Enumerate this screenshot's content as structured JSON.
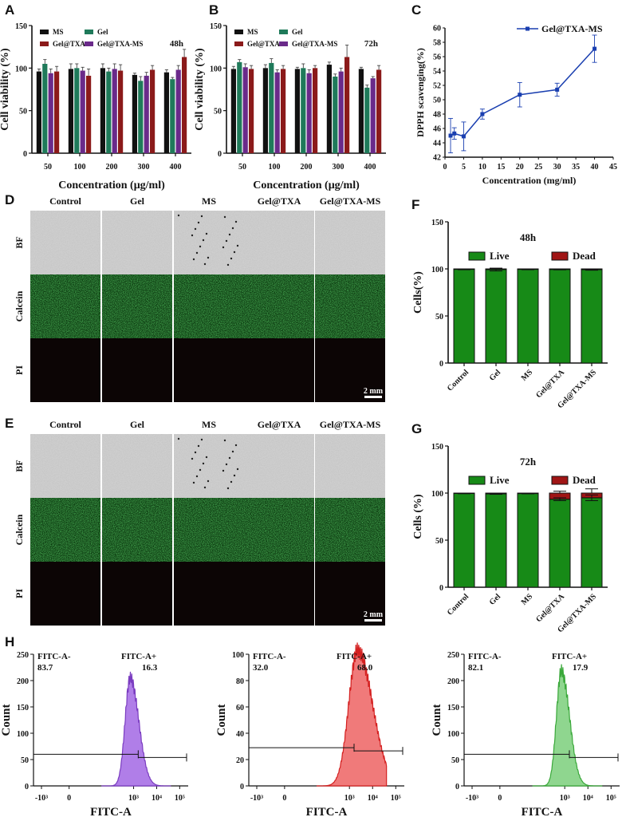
{
  "panels": {
    "A": "A",
    "B": "B",
    "C": "C",
    "D": "D",
    "E": "E",
    "F": "F",
    "G": "G",
    "H": "H"
  },
  "colors": {
    "MS": "#111111",
    "Gel": "#1f7a5a",
    "Gel@TXA": "#8b1a1a",
    "Gel@TXA-MS": "#6a2a8a",
    "line": "#1a3fb0",
    "live": "#178a17",
    "dead": "#a01515",
    "hist": [
      "#b07ee8",
      "#f07a7a",
      "#8fd68f"
    ],
    "hist_edge": [
      "#7a3cc0",
      "#d42020",
      "#3aa83a"
    ]
  },
  "chart_data": [
    {
      "id": "A",
      "type": "bar",
      "label": "48h",
      "title": "",
      "xlabel": "Concentration (μg/ml)",
      "ylabel": "Cell viability (%)",
      "ylim": [
        0,
        150
      ],
      "yticks": [
        0,
        50,
        100,
        150
      ],
      "categories": [
        "50",
        "100",
        "200",
        "300",
        "400"
      ],
      "series": [
        {
          "name": "MS",
          "values": [
            96,
            99,
            100,
            92,
            95
          ],
          "err": [
            3,
            6,
            5,
            2,
            3
          ]
        },
        {
          "name": "Gel",
          "values": [
            105,
            100,
            96,
            85,
            87
          ],
          "err": [
            5,
            5,
            4,
            5,
            2
          ]
        },
        {
          "name": "Gel@TXA-MS",
          "values": [
            94,
            97,
            99,
            91,
            98
          ],
          "err": [
            5,
            4,
            6,
            4,
            5
          ]
        },
        {
          "name": "Gel@TXA",
          "values": [
            96,
            91,
            97,
            98,
            113
          ],
          "err": [
            6,
            8,
            7,
            5,
            9
          ]
        }
      ],
      "legend": [
        "MS",
        "Gel",
        "Gel@TXA",
        "Gel@TXA-MS"
      ]
    },
    {
      "id": "B",
      "type": "bar",
      "label": "72h",
      "title": "",
      "xlabel": "Concentration (μg/ml)",
      "ylabel": "Cell viability (%)",
      "ylim": [
        0,
        150
      ],
      "yticks": [
        0,
        50,
        100,
        150
      ],
      "categories": [
        "50",
        "100",
        "200",
        "300",
        "400"
      ],
      "series": [
        {
          "name": "MS",
          "values": [
            99,
            100,
            99,
            104,
            99
          ],
          "err": [
            3,
            4,
            2,
            3,
            2
          ]
        },
        {
          "name": "Gel",
          "values": [
            107,
            106,
            100,
            90,
            77
          ],
          "err": [
            3,
            5,
            5,
            3,
            3
          ]
        },
        {
          "name": "Gel@TXA-MS",
          "values": [
            101,
            95,
            94,
            96,
            88
          ],
          "err": [
            4,
            3,
            4,
            4,
            2
          ]
        },
        {
          "name": "Gel@TXA",
          "values": [
            99,
            99,
            100,
            113,
            98
          ],
          "err": [
            4,
            4,
            3,
            14,
            5
          ]
        }
      ],
      "legend": [
        "MS",
        "Gel",
        "Gel@TXA",
        "Gel@TXA-MS"
      ]
    },
    {
      "id": "C",
      "type": "line",
      "title": "",
      "xlabel": "Concentration (mg/ml)",
      "ylabel": "DPPH scavenging(%)",
      "xlim": [
        0,
        45
      ],
      "xticks": [
        0,
        5,
        10,
        15,
        20,
        25,
        30,
        35,
        40,
        45
      ],
      "ylim": [
        42,
        60
      ],
      "yticks": [
        42,
        44,
        46,
        48,
        50,
        52,
        54,
        56,
        58,
        60
      ],
      "series": [
        {
          "name": "Gel@TXA-MS",
          "x": [
            1.5,
            2.5,
            5,
            10,
            20,
            30,
            40
          ],
          "y": [
            45.0,
            45.3,
            44.9,
            48.0,
            50.7,
            51.4,
            57.1
          ],
          "err": [
            2.4,
            0.8,
            2.0,
            0.7,
            1.7,
            0.9,
            1.9
          ]
        }
      ]
    },
    {
      "id": "F",
      "type": "bar",
      "label": "48h",
      "xlabel": "",
      "ylabel": "Cells(%)",
      "ylim": [
        0,
        150
      ],
      "yticks": [
        0,
        50,
        100,
        150
      ],
      "categories": [
        "Control",
        "Gel",
        "MS",
        "Gel@TXA",
        "Gel@TXA-MS"
      ],
      "series": [
        {
          "name": "Live",
          "values": [
            99.5,
            99.3,
            99.5,
            99.4,
            99.2
          ],
          "err": [
            0.4,
            1.5,
            0.4,
            0.4,
            0.6
          ]
        },
        {
          "name": "Dead",
          "values": [
            0.5,
            0.7,
            0.5,
            0.6,
            0.8
          ],
          "err": [
            0,
            0,
            0,
            0,
            0
          ]
        }
      ],
      "legend": [
        "Live",
        "Dead"
      ]
    },
    {
      "id": "G",
      "type": "bar",
      "label": "72h",
      "xlabel": "",
      "ylabel": "Cells (%)",
      "ylim": [
        0,
        150
      ],
      "yticks": [
        0,
        50,
        100,
        150
      ],
      "categories": [
        "Control",
        "Gel",
        "MS",
        "Gel@TXA",
        "Gel@TXA-MS"
      ],
      "series": [
        {
          "name": "Live",
          "values": [
            99.6,
            99.2,
            99.5,
            93.5,
            95.0
          ],
          "err": [
            0.3,
            0.5,
            0.3,
            1.5,
            3.0
          ]
        },
        {
          "name": "Dead",
          "values": [
            0.4,
            0.8,
            0.5,
            6.5,
            5.0
          ],
          "err": [
            0,
            0,
            0,
            2.0,
            4.5
          ]
        }
      ],
      "legend": [
        "Live",
        "Dead"
      ]
    },
    {
      "id": "H1",
      "type": "area",
      "xlabel": "FITC-A",
      "ylabel": "Count",
      "ylim": [
        0,
        250
      ],
      "yticks": [
        0,
        50,
        100,
        150,
        200,
        250
      ],
      "gate_left": {
        "label": "FITC-A-",
        "value": "83.7"
      },
      "gate_right": {
        "label": "FITC-A+",
        "value": "16.3"
      },
      "peak_log": 2.85,
      "width": 0.22,
      "peak_count": 205
    },
    {
      "id": "H2",
      "type": "area",
      "xlabel": "FITC-A",
      "ylabel": "Count",
      "ylim": [
        0,
        100
      ],
      "yticks": [
        0,
        20,
        40,
        60,
        80,
        100
      ],
      "gate_left": {
        "label": "FITC-A-",
        "value": "32.0"
      },
      "gate_right": {
        "label": "FITC-A+",
        "value": "68.0"
      },
      "peak_log": 3.35,
      "width": 0.38,
      "peak_count": 103
    },
    {
      "id": "H3",
      "type": "area",
      "xlabel": "FITC-A",
      "ylabel": "Count",
      "ylim": [
        0,
        250
      ],
      "yticks": [
        0,
        50,
        100,
        150,
        200,
        250
      ],
      "gate_left": {
        "label": "FITC-A-",
        "value": "82.1"
      },
      "gate_right": {
        "label": "FITC-A+",
        "value": "17.9"
      },
      "peak_log": 2.85,
      "width": 0.21,
      "peak_count": 218
    }
  ],
  "flow_ticks": [
    "-10³",
    "0",
    "10³",
    "10⁴",
    "10⁵"
  ],
  "microscopy": {
    "columns": [
      "Control",
      "Gel",
      "MS",
      "Gel@TXA",
      "Gel@TXA-MS"
    ],
    "rows": [
      "BF",
      "Calcein",
      "PI"
    ],
    "scale_bar": "2 mm"
  }
}
